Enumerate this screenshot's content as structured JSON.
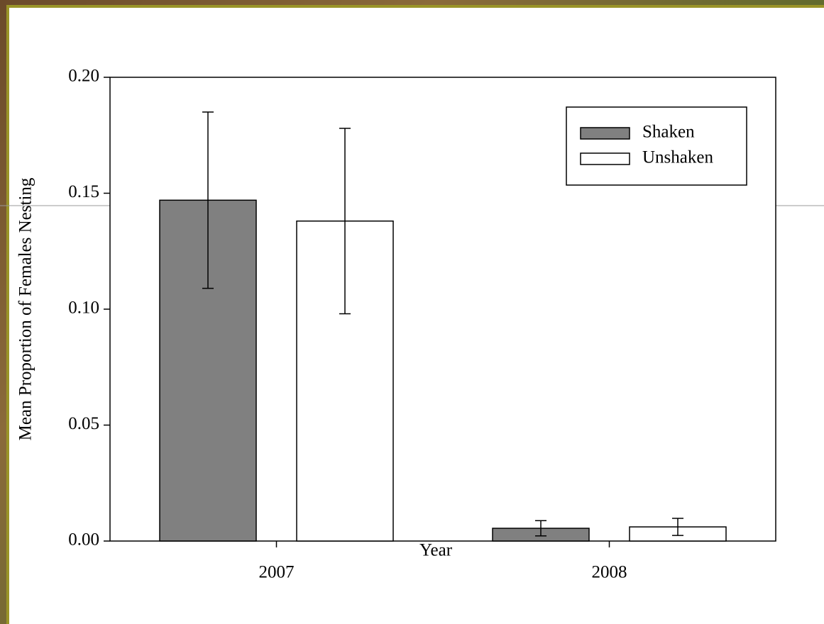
{
  "chart_data": {
    "type": "bar",
    "x_label": "Year",
    "y_label": "Mean Proportion of Females Nesting",
    "categories": [
      "2007",
      "2008"
    ],
    "series": [
      {
        "name": "Shaken",
        "color": "#808080",
        "values": [
          0.147,
          0.0055
        ],
        "errors": [
          0.038,
          0.0033
        ]
      },
      {
        "name": "Unshaken",
        "color": "#ffffff",
        "values": [
          0.138,
          0.0061
        ],
        "errors": [
          0.04,
          0.0037
        ]
      }
    ],
    "ylim": [
      0,
      0.2
    ],
    "yticks": [
      {
        "value": 0,
        "label": "0.00"
      },
      {
        "value": 0.05,
        "label": "0.05"
      },
      {
        "value": 0.1,
        "label": "0.10"
      },
      {
        "value": 0.15,
        "label": "0.15"
      },
      {
        "value": 0.2,
        "label": "0.20"
      }
    ],
    "legend": "upper right"
  }
}
